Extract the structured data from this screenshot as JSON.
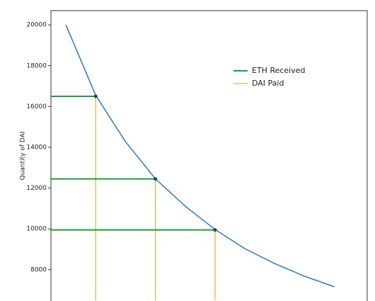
{
  "chart_data": {
    "type": "line",
    "y_label": "Quantity of DAI",
    "x": [
      0,
      1,
      2,
      3,
      4,
      5,
      6,
      7,
      8,
      9
    ],
    "series": [
      {
        "color": "#2b7bba",
        "values": [
          20000,
          16550,
          14270,
          12460,
          11110,
          9970,
          9030,
          8300,
          7680,
          7160
        ]
      }
    ],
    "trades": {
      "x": [
        1,
        3,
        5
      ],
      "values": [
        16500,
        12450,
        9950
      ],
      "color": "#2f3f52"
    },
    "legend_items": [
      {
        "name": "ETH Received",
        "color": "#1e9e3e"
      },
      {
        "name": "DAI Paid",
        "color": "#f0a830"
      }
    ],
    "legend": "upper right",
    "xlim": [
      -0.5,
      10.1
    ],
    "ylim": [
      6500,
      20700
    ],
    "yticks": [
      8000,
      10000,
      12000,
      14000,
      16000,
      18000,
      20000
    ],
    "grid": false
  }
}
